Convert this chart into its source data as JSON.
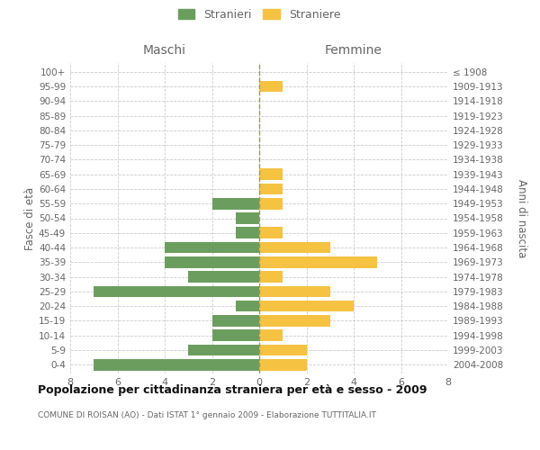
{
  "age_groups": [
    "0-4",
    "5-9",
    "10-14",
    "15-19",
    "20-24",
    "25-29",
    "30-34",
    "35-39",
    "40-44",
    "45-49",
    "50-54",
    "55-59",
    "60-64",
    "65-69",
    "70-74",
    "75-79",
    "80-84",
    "85-89",
    "90-94",
    "95-99",
    "100+"
  ],
  "birth_years": [
    "2004-2008",
    "1999-2003",
    "1994-1998",
    "1989-1993",
    "1984-1988",
    "1979-1983",
    "1974-1978",
    "1969-1973",
    "1964-1968",
    "1959-1963",
    "1954-1958",
    "1949-1953",
    "1944-1948",
    "1939-1943",
    "1934-1938",
    "1929-1933",
    "1924-1928",
    "1919-1923",
    "1914-1918",
    "1909-1913",
    "≤ 1908"
  ],
  "maschi": [
    7,
    3,
    2,
    2,
    1,
    7,
    3,
    4,
    4,
    1,
    1,
    2,
    0,
    0,
    0,
    0,
    0,
    0,
    0,
    0,
    0
  ],
  "femmine": [
    2,
    2,
    1,
    3,
    4,
    3,
    1,
    5,
    3,
    1,
    0,
    1,
    1,
    1,
    0,
    0,
    0,
    0,
    0,
    1,
    0
  ],
  "maschi_color": "#6b9e5e",
  "femmine_color": "#f5c242",
  "grid_color": "#cccccc",
  "dashed_line_color": "#999966",
  "title": "Popolazione per cittadinanza straniera per età e sesso - 2009",
  "subtitle": "COMUNE DI ROISAN (AO) - Dati ISTAT 1° gennaio 2009 - Elaborazione TUTTITALIA.IT",
  "ylabel_left": "Fasce di età",
  "ylabel_right": "Anni di nascita",
  "label_maschi": "Maschi",
  "label_femmine": "Femmine",
  "legend_stranieri": "Stranieri",
  "legend_straniere": "Straniere",
  "xlim": 8,
  "text_color": "#666666",
  "title_color": "#111111"
}
